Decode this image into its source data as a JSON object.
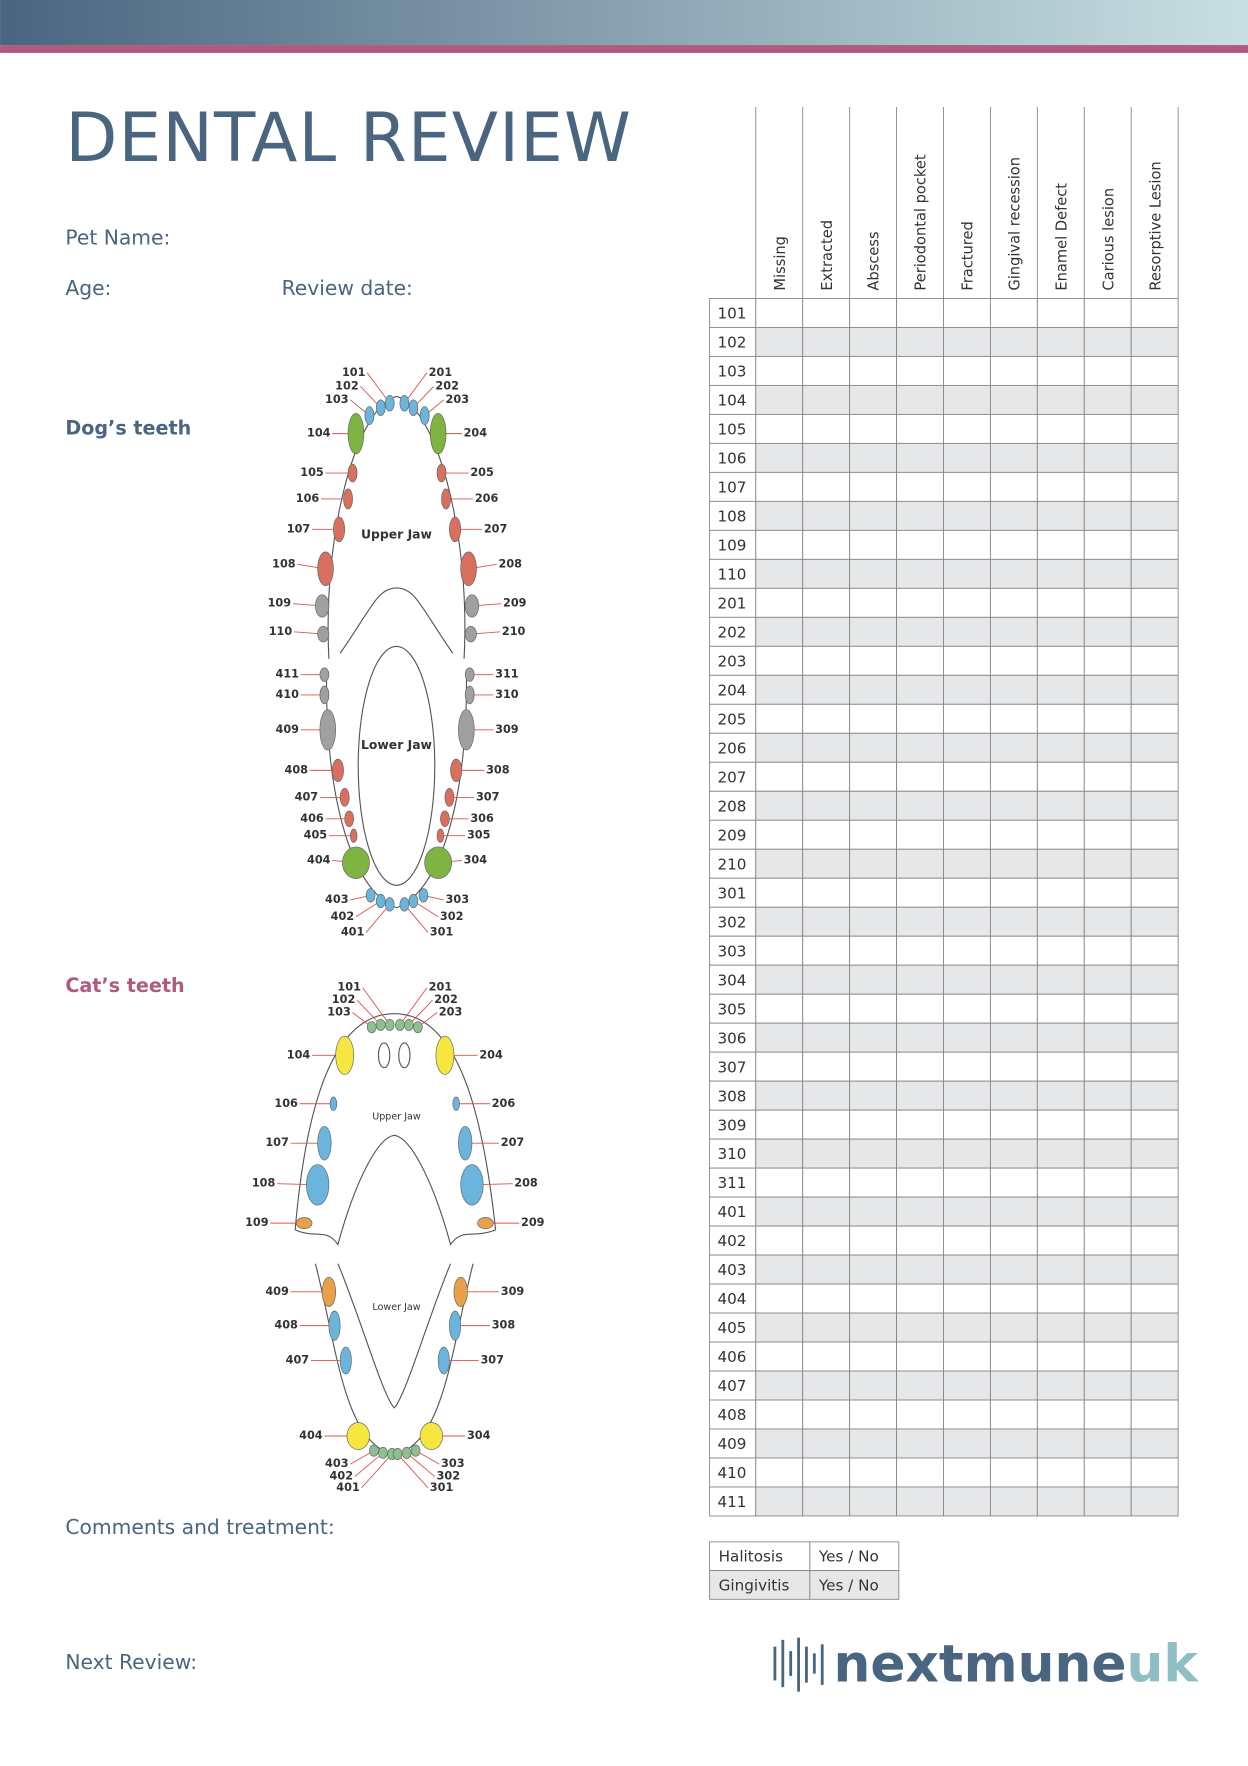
{
  "header": {
    "title": "DENTAL REVIEW"
  },
  "form": {
    "pet_name": "Pet Name:",
    "age": "Age:",
    "review_date": "Review date:",
    "comments": "Comments and treatment:",
    "next_review": "Next Review:"
  },
  "diagrams": {
    "dog": {
      "label": "Dog’s teeth",
      "upper_jaw": "Upper Jaw",
      "lower_jaw": "Lower Jaw",
      "teeth": [
        "101",
        "102",
        "103",
        "104",
        "105",
        "106",
        "107",
        "108",
        "109",
        "110",
        "201",
        "202",
        "203",
        "204",
        "205",
        "206",
        "207",
        "208",
        "209",
        "210",
        "411",
        "410",
        "409",
        "408",
        "407",
        "406",
        "405",
        "404",
        "403",
        "402",
        "401",
        "311",
        "310",
        "309",
        "308",
        "307",
        "306",
        "305",
        "304",
        "303",
        "302",
        "301"
      ]
    },
    "cat": {
      "label": "Cat’s teeth",
      "upper_jaw": "Upper Jaw",
      "lower_jaw": "Lower Jaw",
      "teeth": [
        "101",
        "102",
        "103",
        "104",
        "106",
        "107",
        "108",
        "109",
        "201",
        "202",
        "203",
        "204",
        "206",
        "207",
        "208",
        "209",
        "409",
        "408",
        "407",
        "404",
        "403",
        "402",
        "401",
        "309",
        "308",
        "307",
        "304",
        "303",
        "302",
        "301"
      ]
    }
  },
  "table": {
    "columns": [
      "Missing",
      "Extracted",
      "Abscess",
      "Periodontal pocket",
      "Fractured",
      "Gingival recession",
      "Enamel Defect",
      "Carious lesion",
      "Resorptive Lesion"
    ],
    "rows": [
      "101",
      "102",
      "103",
      "104",
      "105",
      "106",
      "107",
      "108",
      "109",
      "110",
      "201",
      "202",
      "203",
      "204",
      "205",
      "206",
      "207",
      "208",
      "209",
      "210",
      "301",
      "302",
      "303",
      "304",
      "305",
      "306",
      "307",
      "308",
      "309",
      "310",
      "311",
      "401",
      "402",
      "403",
      "404",
      "405",
      "406",
      "407",
      "408",
      "409",
      "410",
      "411"
    ]
  },
  "checks": {
    "rows": [
      [
        "Halitosis",
        "Yes / No"
      ],
      [
        "Gingivitis",
        "Yes / No"
      ]
    ]
  },
  "logo": {
    "brand": "nextmune",
    "suffix": "uk"
  }
}
